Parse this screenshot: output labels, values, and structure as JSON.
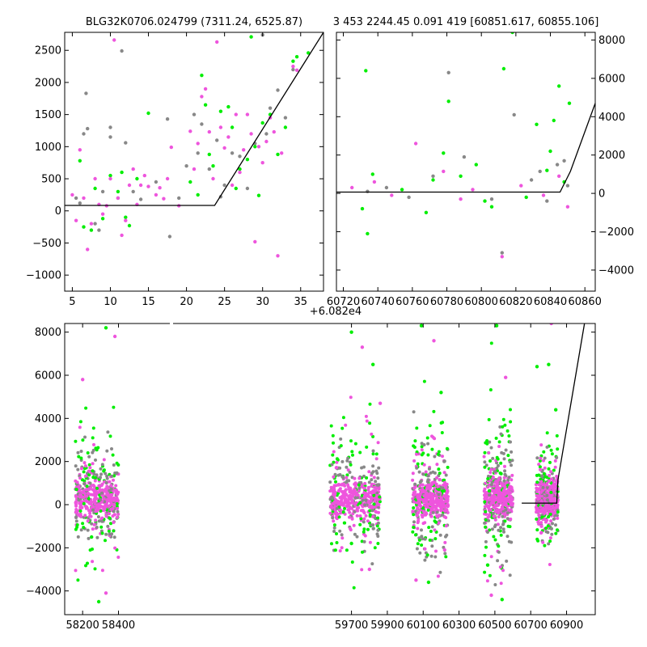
{
  "colors": {
    "gray": "#888888",
    "green": "#00ee00",
    "magenta": "#ee55dd",
    "model": "#000000"
  },
  "chart_data": [
    {
      "type": "scatter",
      "id": "top-left",
      "title": "BLG32K0706.024799 (7311.24, 6525.87)",
      "xlim": [
        4,
        38
      ],
      "ylim": [
        -1250,
        2780
      ],
      "xticks": [
        5,
        10,
        15,
        20,
        25,
        30,
        35
      ],
      "yticks": [
        -1000,
        -500,
        0,
        500,
        1000,
        1500,
        2000,
        2500
      ],
      "model_line": {
        "x": [
          4,
          23.7,
          38
        ],
        "y": [
          85,
          85,
          2780
        ]
      },
      "series": [
        {
          "color": "gray",
          "points": [
            [
              5.5,
              200
            ],
            [
              6,
              120
            ],
            [
              6.5,
              1200
            ],
            [
              6.8,
              1830
            ],
            [
              7,
              1280
            ],
            [
              8,
              -200
            ],
            [
              8.5,
              -300
            ],
            [
              9,
              300
            ],
            [
              10,
              1300
            ],
            [
              10,
              1150
            ],
            [
              11,
              200
            ],
            [
              11.5,
              2490
            ],
            [
              12,
              1060
            ],
            [
              13,
              300
            ],
            [
              14,
              180
            ],
            [
              16,
              450
            ],
            [
              17.5,
              1430
            ],
            [
              17.8,
              -400
            ],
            [
              19,
              200
            ],
            [
              20,
              700
            ],
            [
              21,
              1500
            ],
            [
              21.5,
              900
            ],
            [
              22,
              1350
            ],
            [
              23,
              650
            ],
            [
              24,
              1100
            ],
            [
              24.5,
              220
            ],
            [
              25,
              400
            ],
            [
              26,
              900
            ],
            [
              27,
              850
            ],
            [
              28,
              350
            ],
            [
              29,
              1050
            ],
            [
              30,
              2740
            ],
            [
              30.5,
              1200
            ],
            [
              31,
              1600
            ],
            [
              32,
              1880
            ],
            [
              33,
              1450
            ],
            [
              34,
              2200
            ]
          ]
        },
        {
          "color": "green",
          "points": [
            [
              6,
              780
            ],
            [
              6.5,
              -250
            ],
            [
              7.5,
              -300
            ],
            [
              8,
              350
            ],
            [
              9,
              -120
            ],
            [
              10,
              550
            ],
            [
              11,
              300
            ],
            [
              11.5,
              600
            ],
            [
              12,
              -100
            ],
            [
              12.5,
              -230
            ],
            [
              13.5,
              500
            ],
            [
              15,
              1520
            ],
            [
              20.5,
              450
            ],
            [
              21.5,
              250
            ],
            [
              22,
              2110
            ],
            [
              22.5,
              1650
            ],
            [
              23,
              880
            ],
            [
              23.5,
              700
            ],
            [
              24.5,
              1550
            ],
            [
              25.5,
              1620
            ],
            [
              26,
              1300
            ],
            [
              26.5,
              350
            ],
            [
              27,
              650
            ],
            [
              28,
              800
            ],
            [
              28.5,
              2710
            ],
            [
              29,
              1000
            ],
            [
              29.5,
              240
            ],
            [
              30,
              1370
            ],
            [
              31,
              1500
            ],
            [
              32,
              880
            ],
            [
              33,
              1300
            ],
            [
              34,
              2330
            ],
            [
              34.5,
              2400
            ],
            [
              36,
              2460
            ]
          ]
        },
        {
          "color": "magenta",
          "points": [
            [
              5,
              250
            ],
            [
              5.5,
              -150
            ],
            [
              6,
              950
            ],
            [
              6.5,
              200
            ],
            [
              7,
              -600
            ],
            [
              7.5,
              -200
            ],
            [
              8,
              500
            ],
            [
              8.5,
              100
            ],
            [
              9,
              -50
            ],
            [
              9.5,
              80
            ],
            [
              10,
              500
            ],
            [
              10.5,
              2660
            ],
            [
              11,
              200
            ],
            [
              11.5,
              -380
            ],
            [
              12,
              -150
            ],
            [
              12.5,
              400
            ],
            [
              13,
              650
            ],
            [
              13.5,
              100
            ],
            [
              14,
              400
            ],
            [
              14.5,
              550
            ],
            [
              15,
              380
            ],
            [
              16,
              250
            ],
            [
              16.5,
              360
            ],
            [
              17,
              190
            ],
            [
              17.5,
              500
            ],
            [
              18,
              990
            ],
            [
              19,
              80
            ],
            [
              20.5,
              1240
            ],
            [
              21,
              650
            ],
            [
              21.5,
              1050
            ],
            [
              22,
              1780
            ],
            [
              22.5,
              1900
            ],
            [
              23,
              1230
            ],
            [
              23.5,
              500
            ],
            [
              24,
              2630
            ],
            [
              24.5,
              1300
            ],
            [
              25,
              980
            ],
            [
              25.5,
              1150
            ],
            [
              26,
              400
            ],
            [
              26.5,
              1500
            ],
            [
              27,
              600
            ],
            [
              27.5,
              950
            ],
            [
              28,
              1500
            ],
            [
              28.5,
              1200
            ],
            [
              29,
              -480
            ],
            [
              29.5,
              1000
            ],
            [
              30,
              750
            ],
            [
              30.5,
              1080
            ],
            [
              31,
              1450
            ],
            [
              31.5,
              1230
            ],
            [
              32,
              -700
            ],
            [
              32.5,
              900
            ],
            [
              34,
              2250
            ],
            [
              34.5,
              2190
            ]
          ]
        }
      ]
    },
    {
      "type": "scatter",
      "id": "top-right",
      "title": "3 453 2244.45 0.091 419 [60851.617, 60855.106]",
      "offset_label": "+6.082e4",
      "xlim": [
        60716,
        60866
      ],
      "ylim": [
        -5100,
        8400
      ],
      "xticks": [
        60720,
        60740,
        60760,
        60780,
        60800,
        60820,
        60840,
        60860
      ],
      "yticks": [
        -4000,
        -2000,
        0,
        2000,
        4000,
        6000,
        8000
      ],
      "model_line": {
        "x": [
          60716,
          60845.6,
          60851.6,
          60866
        ],
        "y": [
          70,
          70,
          1150,
          4700
        ]
      },
      "series": [
        {
          "color": "gray",
          "points": [
            [
              60734,
              100
            ],
            [
              60745,
              300
            ],
            [
              60758,
              -200
            ],
            [
              60772,
              900
            ],
            [
              60781,
              6300
            ],
            [
              60790,
              1900
            ],
            [
              60806,
              -300
            ],
            [
              60812,
              -3100
            ],
            [
              60819,
              4100
            ],
            [
              60829,
              700
            ],
            [
              60834,
              1150
            ],
            [
              60838,
              -400
            ],
            [
              60844,
              1500
            ],
            [
              60848,
              1700
            ],
            [
              60850,
              400
            ]
          ]
        },
        {
          "color": "green",
          "points": [
            [
              60731,
              -800
            ],
            [
              60733,
              6400
            ],
            [
              60734,
              -2100
            ],
            [
              60737,
              1000
            ],
            [
              60754,
              200
            ],
            [
              60768,
              -1000
            ],
            [
              60772,
              700
            ],
            [
              60778,
              2100
            ],
            [
              60781,
              4800
            ],
            [
              60788,
              900
            ],
            [
              60797,
              1500
            ],
            [
              60802,
              -400
            ],
            [
              60806,
              -700
            ],
            [
              60813,
              6500
            ],
            [
              60818,
              8400
            ],
            [
              60826,
              -200
            ],
            [
              60832,
              3600
            ],
            [
              60838,
              1200
            ],
            [
              60840,
              2200
            ],
            [
              60842,
              3800
            ],
            [
              60845,
              5600
            ],
            [
              60848,
              600
            ],
            [
              60851,
              4700
            ]
          ]
        },
        {
          "color": "magenta",
          "points": [
            [
              60725,
              300
            ],
            [
              60738,
              600
            ],
            [
              60748,
              -100
            ],
            [
              60762,
              2600
            ],
            [
              60778,
              1150
            ],
            [
              60788,
              -300
            ],
            [
              60795,
              200
            ],
            [
              60812,
              -3300
            ],
            [
              60823,
              400
            ],
            [
              60836,
              -100
            ],
            [
              60845,
              900
            ],
            [
              60850,
              -700
            ]
          ]
        }
      ]
    },
    {
      "type": "scatter",
      "id": "bottom",
      "xlim": [
        58100,
        61060
      ],
      "ylim": [
        -5100,
        8400
      ],
      "xticks": [
        58200,
        58400,
        59700,
        59900,
        60100,
        60300,
        60500,
        60700,
        60900
      ],
      "yticks": [
        -4000,
        -2000,
        0,
        2000,
        4000,
        6000,
        8000
      ],
      "model_line": {
        "x": [
          60650,
          60845,
          60852,
          61000
        ],
        "y": [
          70,
          70,
          1150,
          8400
        ]
      },
      "seasons": [
        {
          "x": [
            58160,
            58400
          ],
          "spread": 1600,
          "outliers": [
            [
              58330,
              8200
            ],
            [
              58200,
              5800
            ],
            [
              58250,
              -1500
            ],
            [
              58380,
              7800
            ],
            [
              58290,
              -4500
            ],
            [
              58330,
              -4100
            ]
          ]
        },
        {
          "x": [
            59580,
            59860
          ],
          "spread": 1700,
          "outliers": [
            [
              59700,
              8000
            ],
            [
              59760,
              7300
            ],
            [
              59820,
              6500
            ],
            [
              59800,
              -3000
            ],
            [
              59700,
              -1800
            ],
            [
              59860,
              4700
            ]
          ]
        },
        {
          "x": [
            60040,
            60240
          ],
          "spread": 1800,
          "outliers": [
            [
              60090,
              8300
            ],
            [
              60160,
              7600
            ],
            [
              60130,
              -3600
            ],
            [
              60060,
              -3500
            ],
            [
              60200,
              5200
            ],
            [
              60220,
              -2100
            ]
          ]
        },
        {
          "x": [
            60440,
            60600
          ],
          "spread": 1800,
          "outliers": [
            [
              60510,
              8300
            ],
            [
              60480,
              -4200
            ],
            [
              60540,
              -4400
            ],
            [
              60560,
              5900
            ],
            [
              60460,
              -2800
            ]
          ]
        },
        {
          "x": [
            60730,
            60852
          ],
          "spread": 1100,
          "outliers": [
            [
              60735,
              6400
            ],
            [
              60815,
              8400
            ],
            [
              60800,
              6500
            ],
            [
              60760,
              -1000
            ],
            [
              60840,
              4400
            ]
          ]
        }
      ]
    }
  ]
}
